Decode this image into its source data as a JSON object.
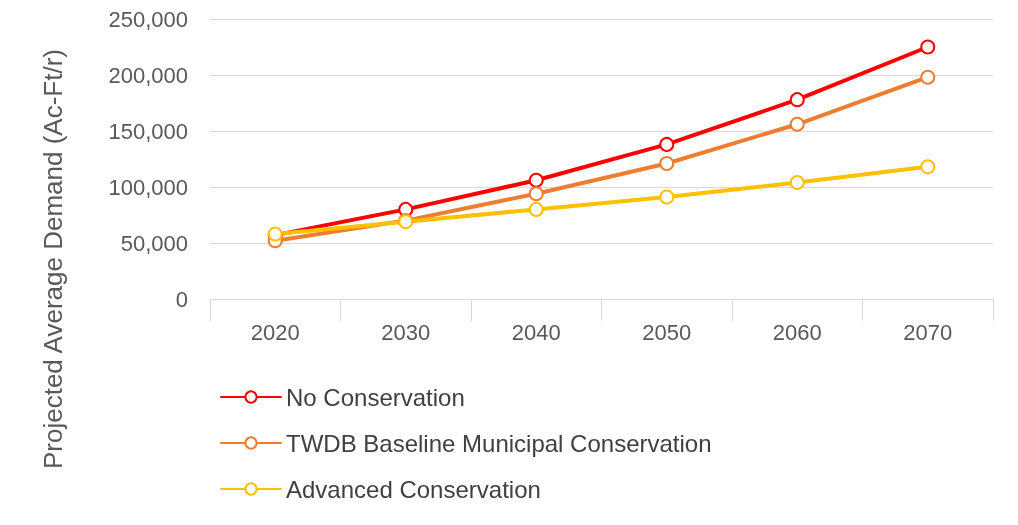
{
  "chart_data": {
    "type": "line",
    "ylabel": "Projected Average Demand (Ac-Ft/r)",
    "categories": [
      "2020",
      "2030",
      "2040",
      "2050",
      "2060",
      "2070"
    ],
    "series": [
      {
        "name": "No Conservation",
        "color": "#ff0000",
        "values": [
          57000,
          80000,
          106000,
          138000,
          178000,
          225000
        ]
      },
      {
        "name": "TWDB Baseline Municipal Conservation",
        "color": "#ed7d31",
        "values": [
          52000,
          70000,
          94000,
          121000,
          156000,
          198000
        ]
      },
      {
        "name": "Advanced Conservation",
        "color": "#ffc000",
        "values": [
          58000,
          69000,
          80000,
          91000,
          104000,
          118000
        ]
      }
    ],
    "ylim": [
      0,
      250000
    ],
    "yticks": [
      0,
      {
        "value": 50000,
        "label": "50,000"
      },
      {
        "value": 100000,
        "label": "100,000"
      },
      {
        "value": 150000,
        "label": "150,000"
      },
      {
        "value": 200000,
        "label": "200,000"
      },
      {
        "value": 250000,
        "label": "250,000"
      }
    ],
    "grid": "y",
    "legend": "bottom",
    "marker": "circle",
    "line_style": "solid"
  }
}
